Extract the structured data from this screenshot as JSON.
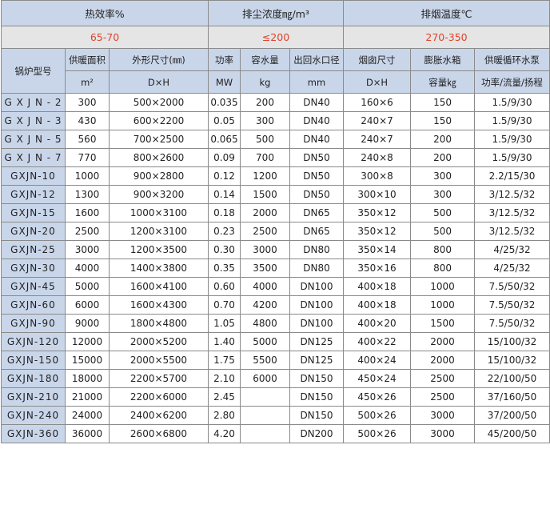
{
  "header": {
    "efficiency_label": "热效率%",
    "dust_label": "排尘浓度㎎/m³",
    "smoke_temp_label": "排烟温度℃",
    "efficiency_value": "65-70",
    "dust_value": "≤200",
    "smoke_temp_value": "270-350"
  },
  "columns": {
    "model": "锅炉型号",
    "area": "供暖面积",
    "dims": "外形尺寸(㎜)",
    "power": "功率",
    "water": "容水量",
    "pipe": "出回水口径",
    "chimney": "烟囱尺寸",
    "tank": "膨胀水箱",
    "pump": "供暖循环水泵"
  },
  "units": {
    "area": "m²",
    "dims": "D×H",
    "power": "MW",
    "water": "kg",
    "pipe": "mm",
    "chimney": "D×H",
    "tank": "容量㎏",
    "pump": "功率/流量/扬程"
  },
  "rows": [
    [
      "G X J N - 2",
      "300",
      "500×2000",
      "0.035",
      "200",
      "DN40",
      "160×6",
      "150",
      "1.5/9/30"
    ],
    [
      "G X J N - 3",
      "430",
      "600×2200",
      "0.05",
      "300",
      "DN40",
      "240×7",
      "150",
      "1.5/9/30"
    ],
    [
      "G X J N - 5",
      "560",
      "700×2500",
      "0.065",
      "500",
      "DN40",
      "240×7",
      "200",
      "1.5/9/30"
    ],
    [
      "G X J N - 7",
      "770",
      "800×2600",
      "0.09",
      "700",
      "DN50",
      "240×8",
      "200",
      "1.5/9/30"
    ],
    [
      "GXJN-10",
      "1000",
      "900×2800",
      "0.12",
      "1200",
      "DN50",
      "300×8",
      "300",
      "2.2/15/30"
    ],
    [
      "GXJN-12",
      "1300",
      "900×3200",
      "0.14",
      "1500",
      "DN50",
      "300×10",
      "300",
      "3/12.5/32"
    ],
    [
      "GXJN-15",
      "1600",
      "1000×3100",
      "0.18",
      "2000",
      "DN65",
      "350×12",
      "500",
      "3/12.5/32"
    ],
    [
      "GXJN-20",
      "2500",
      "1200×3100",
      "0.23",
      "2500",
      "DN65",
      "350×12",
      "500",
      "3/12.5/32"
    ],
    [
      "GXJN-25",
      "3000",
      "1200×3500",
      "0.30",
      "3000",
      "DN80",
      "350×14",
      "800",
      "4/25/32"
    ],
    [
      "GXJN-30",
      "4000",
      "1400×3800",
      "0.35",
      "3500",
      "DN80",
      "350×16",
      "800",
      "4/25/32"
    ],
    [
      "GXJN-45",
      "5000",
      "1600×4100",
      "0.60",
      "4000",
      "DN100",
      "400×18",
      "1000",
      "7.5/50/32"
    ],
    [
      "GXJN-60",
      "6000",
      "1600×4300",
      "0.70",
      "4200",
      "DN100",
      "400×18",
      "1000",
      "7.5/50/32"
    ],
    [
      "GXJN-90",
      "9000",
      "1800×4800",
      "1.05",
      "4800",
      "DN100",
      "400×20",
      "1500",
      "7.5/50/32"
    ],
    [
      "GXJN-120",
      "12000",
      "2000×5200",
      "1.40",
      "5000",
      "DN125",
      "400×22",
      "2000",
      "15/100/32"
    ],
    [
      "GXJN-150",
      "15000",
      "2000×5500",
      "1.75",
      "5500",
      "DN125",
      "400×24",
      "2000",
      "15/100/32"
    ],
    [
      "GXJN-180",
      "18000",
      "2200×5700",
      "2.10",
      "6000",
      "DN150",
      "450×24",
      "2500",
      "22/100/50"
    ],
    [
      "GXJN-210",
      "21000",
      "2200×6000",
      "2.45",
      "",
      "DN150",
      "450×26",
      "2500",
      "37/160/50"
    ],
    [
      "GXJN-240",
      "24000",
      "2400×6200",
      "2.80",
      "",
      "DN150",
      "500×26",
      "3000",
      "37/200/50"
    ],
    [
      "GXJN-360",
      "36000",
      "2600×6800",
      "4.20",
      "",
      "DN200",
      "500×26",
      "3000",
      "45/200/50"
    ]
  ]
}
